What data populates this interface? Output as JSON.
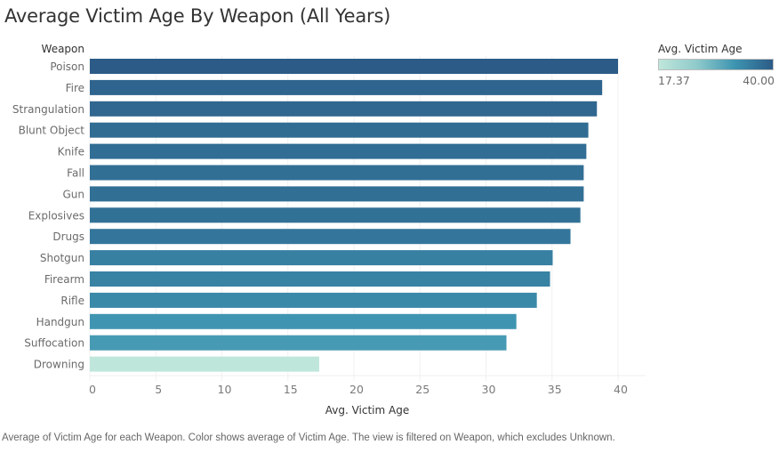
{
  "chart_data": {
    "type": "bar",
    "orientation": "horizontal",
    "title": "Average Victim Age By Weapon (All Years)",
    "ylabel": "Weapon",
    "xlabel": "Avg. Victim Age",
    "xlim": [
      0,
      42
    ],
    "xticks": [
      0,
      5,
      10,
      15,
      20,
      25,
      30,
      35,
      40
    ],
    "grid": true,
    "categories": [
      "Poison",
      "Fire",
      "Strangulation",
      "Blunt Object",
      "Knife",
      "Fall",
      "Gun",
      "Explosives",
      "Drugs",
      "Shotgun",
      "Firearm",
      "Rifle",
      "Handgun",
      "Suffocation",
      "Drowning"
    ],
    "values": [
      40.0,
      38.8,
      38.4,
      37.75,
      37.6,
      37.4,
      37.4,
      37.15,
      36.4,
      35.05,
      34.85,
      33.85,
      32.3,
      31.55,
      17.37
    ],
    "legend": {
      "title": "Avg. Victim Age",
      "min_label": "17.37",
      "max_label": "40.00",
      "min": 17.37,
      "max": 40.0,
      "placement": "top-right",
      "colors": [
        "#bfe6da",
        "#8fcacb",
        "#3d94b0",
        "#2c5b87"
      ]
    }
  },
  "footnote": "Average of Victim Age for each Weapon.  Color shows average of Victim Age. The view is filtered on Weapon, which excludes Unknown."
}
